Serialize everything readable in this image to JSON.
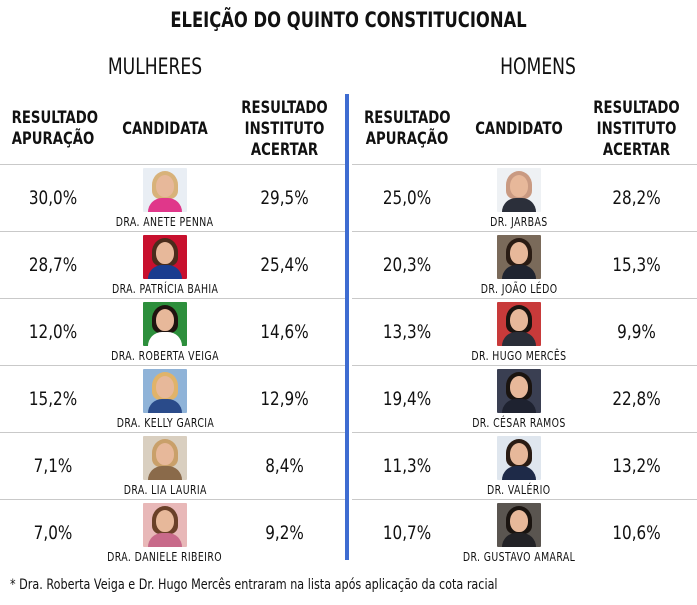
{
  "title": "ELEIÇÃO DO QUINTO CONSTITUCIONAL",
  "accent_color": "#3e6cd1",
  "women": {
    "label": "MULHERES",
    "headers": {
      "col1": [
        "RESULTADO",
        "APURAÇÃO"
      ],
      "col2": [
        "CANDIDATA"
      ],
      "col3": [
        "RESULTADO",
        "INSTITUTO",
        "ACERTAR"
      ]
    },
    "rows": [
      {
        "result": "30,0%",
        "name": "DRA. ANETE PENNA",
        "institute": "29,5%",
        "photo_bg": "#e9eef4",
        "hair": "#d8b27a",
        "shirt": "#e0378a"
      },
      {
        "result": "28,7%",
        "name": "DRA. PATRÍCIA BAHIA",
        "institute": "25,4%",
        "photo_bg": "#c8102e",
        "hair": "#4a2c1c",
        "shirt": "#1a3d8f"
      },
      {
        "result": "12,0%",
        "name": "DRA. ROBERTA VEIGA",
        "institute": "14,6%",
        "photo_bg": "#2d8f3c",
        "hair": "#1f1410",
        "shirt": "#ffffff"
      },
      {
        "result": "15,2%",
        "name": "DRA. KELLY GARCIA",
        "institute": "12,9%",
        "photo_bg": "#8fb3d8",
        "hair": "#e0b36a",
        "shirt": "#2a4b8a"
      },
      {
        "result": "7,1%",
        "name": "DRA. LIA LAURIA",
        "institute": "8,4%",
        "photo_bg": "#d9cfc0",
        "hair": "#c9a06a",
        "shirt": "#8a6a4a"
      },
      {
        "result": "7,0%",
        "name": "DRA. DANIELE RIBEIRO",
        "institute": "9,2%",
        "photo_bg": "#e8b8b8",
        "hair": "#6a4028",
        "shirt": "#c86a8a"
      }
    ]
  },
  "men": {
    "label": "HOMENS",
    "headers": {
      "col1": [
        "RESULTADO",
        "APURAÇÃO"
      ],
      "col2": [
        "CANDIDATO"
      ],
      "col3": [
        "RESULTADO",
        "INSTITUTO",
        "ACERTAR"
      ]
    },
    "rows": [
      {
        "result": "25,0%",
        "name": "DR. JARBAS",
        "institute": "28,2%",
        "photo_bg": "#eef1f4",
        "hair": "#c99a82",
        "shirt": "#2b2f3a"
      },
      {
        "result": "20,3%",
        "name": "DR. JOÃO LÉDO",
        "institute": "15,3%",
        "photo_bg": "#7a6a5a",
        "hair": "#2a1c14",
        "shirt": "#1f2430"
      },
      {
        "result": "13,3%",
        "name": "DR. HUGO MERCÊS",
        "institute": "9,9%",
        "photo_bg": "#c83a3a",
        "hair": "#1a1410",
        "shirt": "#2a2e38"
      },
      {
        "result": "19,4%",
        "name": "DR. CÉSAR RAMOS",
        "institute": "22,8%",
        "photo_bg": "#3a3f52",
        "hair": "#1a1410",
        "shirt": "#1e2230"
      },
      {
        "result": "11,3%",
        "name": "DR. VALÉRIO",
        "institute": "13,2%",
        "photo_bg": "#dfe6ee",
        "hair": "#2a1c14",
        "shirt": "#1e2a48"
      },
      {
        "result": "10,7%",
        "name": "DR. GUSTAVO AMARAL",
        "institute": "10,6%",
        "photo_bg": "#5a5550",
        "hair": "#1a1410",
        "shirt": "#222226"
      }
    ]
  },
  "footnote": "* Dra. Roberta Veiga e Dr. Hugo Mercês entraram na lista após aplicação da cota racial"
}
